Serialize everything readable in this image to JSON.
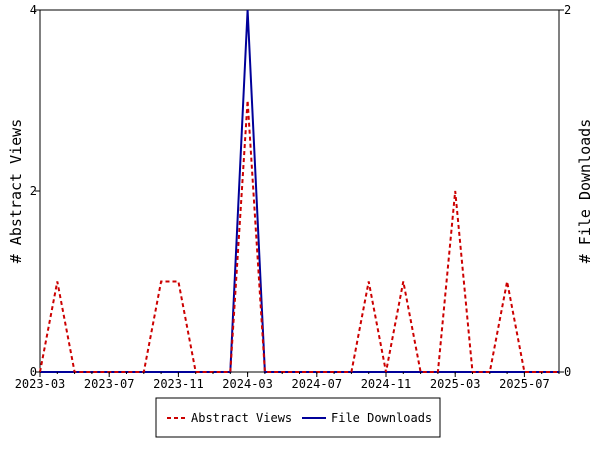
{
  "chart_data": {
    "type": "line",
    "x_ticks": [
      "2023-03",
      "2023-07",
      "2023-11",
      "2024-03",
      "2024-07",
      "2024-11",
      "2025-03",
      "2025-07"
    ],
    "y_left": {
      "label": "# Abstract Views",
      "ylim": [
        0,
        4
      ],
      "ticks": [
        0,
        2,
        4
      ]
    },
    "y_right": {
      "label": "# File Downloads",
      "ylim": [
        0,
        2
      ],
      "ticks": [
        0,
        2
      ]
    },
    "x_range": [
      "2023-03",
      "2025-09"
    ],
    "grid": false,
    "legend_position": "bottom-center",
    "series": [
      {
        "name": "Abstract Views",
        "axis": "left",
        "color": "#cc0000",
        "style": "dashed",
        "points": [
          [
            "2023-03",
            0
          ],
          [
            "2023-04",
            1
          ],
          [
            "2023-05",
            0
          ],
          [
            "2023-06",
            0
          ],
          [
            "2023-07",
            0
          ],
          [
            "2023-08",
            0
          ],
          [
            "2023-09",
            0
          ],
          [
            "2023-10",
            1
          ],
          [
            "2023-11",
            1
          ],
          [
            "2023-12",
            0
          ],
          [
            "2024-01",
            0
          ],
          [
            "2024-02",
            0
          ],
          [
            "2024-03",
            3
          ],
          [
            "2024-04",
            0
          ],
          [
            "2024-05",
            0
          ],
          [
            "2024-06",
            0
          ],
          [
            "2024-07",
            0
          ],
          [
            "2024-08",
            0
          ],
          [
            "2024-09",
            0
          ],
          [
            "2024-10",
            1
          ],
          [
            "2024-11",
            0
          ],
          [
            "2024-12",
            1
          ],
          [
            "2025-01",
            0
          ],
          [
            "2025-02",
            0
          ],
          [
            "2025-03",
            2
          ],
          [
            "2025-04",
            0
          ],
          [
            "2025-05",
            0
          ],
          [
            "2025-06",
            1
          ],
          [
            "2025-07",
            0
          ],
          [
            "2025-08",
            0
          ],
          [
            "2025-09",
            0
          ]
        ]
      },
      {
        "name": "File Downloads",
        "axis": "right",
        "color": "#000099",
        "style": "solid",
        "points": [
          [
            "2023-03",
            0
          ],
          [
            "2023-04",
            0
          ],
          [
            "2023-05",
            0
          ],
          [
            "2023-06",
            0
          ],
          [
            "2023-07",
            0
          ],
          [
            "2023-08",
            0
          ],
          [
            "2023-09",
            0
          ],
          [
            "2023-10",
            0
          ],
          [
            "2023-11",
            0
          ],
          [
            "2023-12",
            0
          ],
          [
            "2024-01",
            0
          ],
          [
            "2024-02",
            0
          ],
          [
            "2024-03",
            2
          ],
          [
            "2024-04",
            0
          ],
          [
            "2024-05",
            0
          ],
          [
            "2024-06",
            0
          ],
          [
            "2024-07",
            0
          ],
          [
            "2024-08",
            0
          ],
          [
            "2024-09",
            0
          ],
          [
            "2024-10",
            0
          ],
          [
            "2024-11",
            0
          ],
          [
            "2024-12",
            0
          ],
          [
            "2025-01",
            0
          ],
          [
            "2025-02",
            0
          ],
          [
            "2025-03",
            0
          ],
          [
            "2025-04",
            0
          ],
          [
            "2025-05",
            0
          ],
          [
            "2025-06",
            0
          ],
          [
            "2025-07",
            0
          ],
          [
            "2025-08",
            0
          ],
          [
            "2025-09",
            0
          ]
        ]
      }
    ]
  }
}
